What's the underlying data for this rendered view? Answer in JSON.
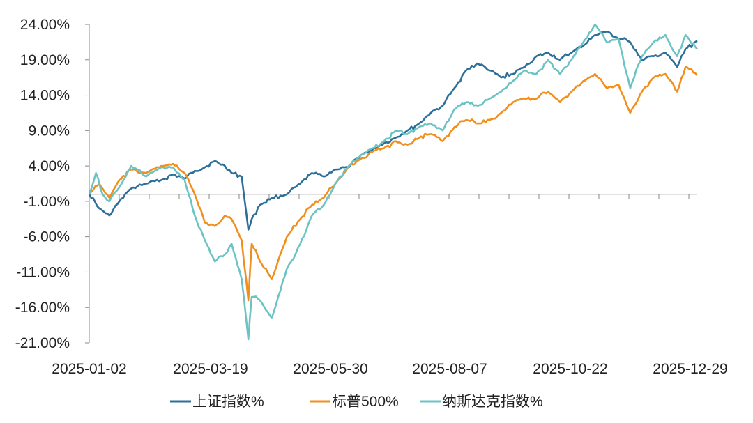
{
  "chart_data": {
    "type": "line",
    "title": "",
    "xlabel": "",
    "ylabel": "",
    "ylim": [
      -21,
      24
    ],
    "y_ticks": [
      24,
      19,
      14,
      9,
      4,
      -1,
      -6,
      -11,
      -16,
      -21
    ],
    "y_tick_labels": [
      "24.00%",
      "19.00%",
      "14.00%",
      "9.00%",
      "4.00%",
      "-1.00%",
      "-6.00%",
      "-11.00%",
      "-16.00%",
      "-21.00%"
    ],
    "x_tick_labels": [
      "2025-01-02",
      "2025-03-19",
      "2025-05-30",
      "2025-08-07",
      "2025-10-22",
      "2025-12-29"
    ],
    "grid": false,
    "legend_position": "bottom",
    "series": [
      {
        "name": "上证指数%",
        "color": "#2d6f99",
        "points": [
          [
            "2025-01-02",
            0.0
          ],
          [
            "2025-01-08",
            -2.0
          ],
          [
            "2025-01-14",
            -3.0
          ],
          [
            "2025-01-20",
            -1.0
          ],
          [
            "2025-01-27",
            0.8
          ],
          [
            "2025-02-05",
            1.5
          ],
          [
            "2025-02-14",
            2.0
          ],
          [
            "2025-02-21",
            2.8
          ],
          [
            "2025-02-28",
            2.2
          ],
          [
            "2025-03-06",
            3.3
          ],
          [
            "2025-03-12",
            3.8
          ],
          [
            "2025-03-18",
            4.7
          ],
          [
            "2025-03-24",
            4.0
          ],
          [
            "2025-03-28",
            3.0
          ],
          [
            "2025-04-03",
            2.5
          ],
          [
            "2025-04-07",
            -5.0
          ],
          [
            "2025-04-09",
            -3.5
          ],
          [
            "2025-04-14",
            -1.5
          ],
          [
            "2025-04-21",
            -0.5
          ],
          [
            "2025-04-30",
            0.0
          ],
          [
            "2025-05-08",
            1.5
          ],
          [
            "2025-05-15",
            3.0
          ],
          [
            "2025-05-22",
            2.5
          ],
          [
            "2025-05-29",
            3.5
          ],
          [
            "2025-06-06",
            3.8
          ],
          [
            "2025-06-13",
            5.5
          ],
          [
            "2025-06-20",
            6.3
          ],
          [
            "2025-06-27",
            7.2
          ],
          [
            "2025-07-04",
            8.0
          ],
          [
            "2025-07-11",
            9.0
          ],
          [
            "2025-07-18",
            10.0
          ],
          [
            "2025-07-25",
            11.5
          ],
          [
            "2025-08-01",
            12.5
          ],
          [
            "2025-08-08",
            15.0
          ],
          [
            "2025-08-15",
            17.5
          ],
          [
            "2025-08-22",
            18.5
          ],
          [
            "2025-08-29",
            17.5
          ],
          [
            "2025-09-05",
            16.5
          ],
          [
            "2025-09-12",
            17.0
          ],
          [
            "2025-09-19",
            18.0
          ],
          [
            "2025-09-26",
            19.5
          ],
          [
            "2025-10-03",
            20.0
          ],
          [
            "2025-10-10",
            19.0
          ],
          [
            "2025-10-17",
            20.0
          ],
          [
            "2025-10-24",
            21.0
          ],
          [
            "2025-10-31",
            22.5
          ],
          [
            "2025-11-07",
            23.0
          ],
          [
            "2025-11-14",
            22.0
          ],
          [
            "2025-11-21",
            21.5
          ],
          [
            "2025-11-28",
            19.0
          ],
          [
            "2025-12-05",
            19.5
          ],
          [
            "2025-12-12",
            20.0
          ],
          [
            "2025-12-19",
            18.0
          ],
          [
            "2025-12-24",
            20.5
          ],
          [
            "2025-12-31",
            21.7
          ]
        ]
      },
      {
        "name": "标普500%",
        "color": "#f28e1c",
        "points": [
          [
            "2025-01-02",
            0.0
          ],
          [
            "2025-01-08",
            1.5
          ],
          [
            "2025-01-14",
            -0.5
          ],
          [
            "2025-01-20",
            2.0
          ],
          [
            "2025-01-27",
            3.5
          ],
          [
            "2025-02-05",
            3.0
          ],
          [
            "2025-02-14",
            4.0
          ],
          [
            "2025-02-21",
            4.3
          ],
          [
            "2025-02-28",
            3.0
          ],
          [
            "2025-03-06",
            0.0
          ],
          [
            "2025-03-12",
            -4.0
          ],
          [
            "2025-03-18",
            -4.5
          ],
          [
            "2025-03-24",
            -3.0
          ],
          [
            "2025-03-28",
            -3.5
          ],
          [
            "2025-04-03",
            -6.5
          ],
          [
            "2025-04-07",
            -15.0
          ],
          [
            "2025-04-09",
            -7.0
          ],
          [
            "2025-04-14",
            -9.5
          ],
          [
            "2025-04-21",
            -12.0
          ],
          [
            "2025-04-30",
            -6.0
          ],
          [
            "2025-05-08",
            -3.5
          ],
          [
            "2025-05-15",
            -1.5
          ],
          [
            "2025-05-22",
            -0.5
          ],
          [
            "2025-05-29",
            1.5
          ],
          [
            "2025-06-06",
            4.0
          ],
          [
            "2025-06-13",
            5.0
          ],
          [
            "2025-06-20",
            6.0
          ],
          [
            "2025-06-27",
            6.5
          ],
          [
            "2025-07-04",
            7.5
          ],
          [
            "2025-07-11",
            7.0
          ],
          [
            "2025-07-18",
            8.0
          ],
          [
            "2025-07-25",
            8.5
          ],
          [
            "2025-08-01",
            7.5
          ],
          [
            "2025-08-08",
            9.5
          ],
          [
            "2025-08-15",
            10.5
          ],
          [
            "2025-08-22",
            10.0
          ],
          [
            "2025-08-29",
            10.5
          ],
          [
            "2025-09-05",
            11.5
          ],
          [
            "2025-09-12",
            13.0
          ],
          [
            "2025-09-19",
            13.5
          ],
          [
            "2025-09-26",
            13.5
          ],
          [
            "2025-10-03",
            14.5
          ],
          [
            "2025-10-10",
            13.0
          ],
          [
            "2025-10-17",
            14.5
          ],
          [
            "2025-10-24",
            16.0
          ],
          [
            "2025-10-31",
            17.0
          ],
          [
            "2025-11-07",
            15.0
          ],
          [
            "2025-11-14",
            15.5
          ],
          [
            "2025-11-21",
            11.5
          ],
          [
            "2025-11-28",
            14.5
          ],
          [
            "2025-12-05",
            16.5
          ],
          [
            "2025-12-12",
            17.0
          ],
          [
            "2025-12-19",
            14.5
          ],
          [
            "2025-12-24",
            18.0
          ],
          [
            "2025-12-31",
            16.8
          ]
        ]
      },
      {
        "name": "纳斯达克指数%",
        "color": "#6cc3c4",
        "points": [
          [
            "2025-01-02",
            0.0
          ],
          [
            "2025-01-06",
            3.0
          ],
          [
            "2025-01-10",
            0.0
          ],
          [
            "2025-01-14",
            -1.0
          ],
          [
            "2025-01-20",
            1.0
          ],
          [
            "2025-01-27",
            4.0
          ],
          [
            "2025-02-05",
            2.5
          ],
          [
            "2025-02-14",
            3.8
          ],
          [
            "2025-02-21",
            3.8
          ],
          [
            "2025-02-28",
            2.0
          ],
          [
            "2025-03-06",
            -3.0
          ],
          [
            "2025-03-12",
            -6.5
          ],
          [
            "2025-03-18",
            -9.5
          ],
          [
            "2025-03-24",
            -8.5
          ],
          [
            "2025-03-28",
            -7.0
          ],
          [
            "2025-04-03",
            -12.0
          ],
          [
            "2025-04-07",
            -20.5
          ],
          [
            "2025-04-09",
            -14.5
          ],
          [
            "2025-04-14",
            -15.0
          ],
          [
            "2025-04-21",
            -17.5
          ],
          [
            "2025-04-30",
            -10.5
          ],
          [
            "2025-05-08",
            -7.0
          ],
          [
            "2025-05-15",
            -3.0
          ],
          [
            "2025-05-22",
            -1.5
          ],
          [
            "2025-05-29",
            1.5
          ],
          [
            "2025-06-06",
            4.0
          ],
          [
            "2025-06-13",
            5.5
          ],
          [
            "2025-06-20",
            6.5
          ],
          [
            "2025-06-27",
            7.5
          ],
          [
            "2025-07-04",
            9.0
          ],
          [
            "2025-07-11",
            8.5
          ],
          [
            "2025-07-18",
            9.5
          ],
          [
            "2025-07-25",
            10.0
          ],
          [
            "2025-08-01",
            9.0
          ],
          [
            "2025-08-08",
            12.0
          ],
          [
            "2025-08-15",
            13.0
          ],
          [
            "2025-08-22",
            12.5
          ],
          [
            "2025-08-29",
            13.5
          ],
          [
            "2025-09-05",
            14.5
          ],
          [
            "2025-09-12",
            16.0
          ],
          [
            "2025-09-19",
            17.5
          ],
          [
            "2025-09-26",
            17.0
          ],
          [
            "2025-10-03",
            19.0
          ],
          [
            "2025-10-10",
            17.0
          ],
          [
            "2025-10-17",
            19.0
          ],
          [
            "2025-10-24",
            21.5
          ],
          [
            "2025-10-31",
            24.0
          ],
          [
            "2025-11-07",
            21.5
          ],
          [
            "2025-11-14",
            22.0
          ],
          [
            "2025-11-21",
            15.0
          ],
          [
            "2025-11-28",
            19.5
          ],
          [
            "2025-12-05",
            21.5
          ],
          [
            "2025-12-12",
            22.5
          ],
          [
            "2025-12-19",
            19.5
          ],
          [
            "2025-12-24",
            22.5
          ],
          [
            "2025-12-31",
            20.5
          ]
        ]
      }
    ]
  }
}
